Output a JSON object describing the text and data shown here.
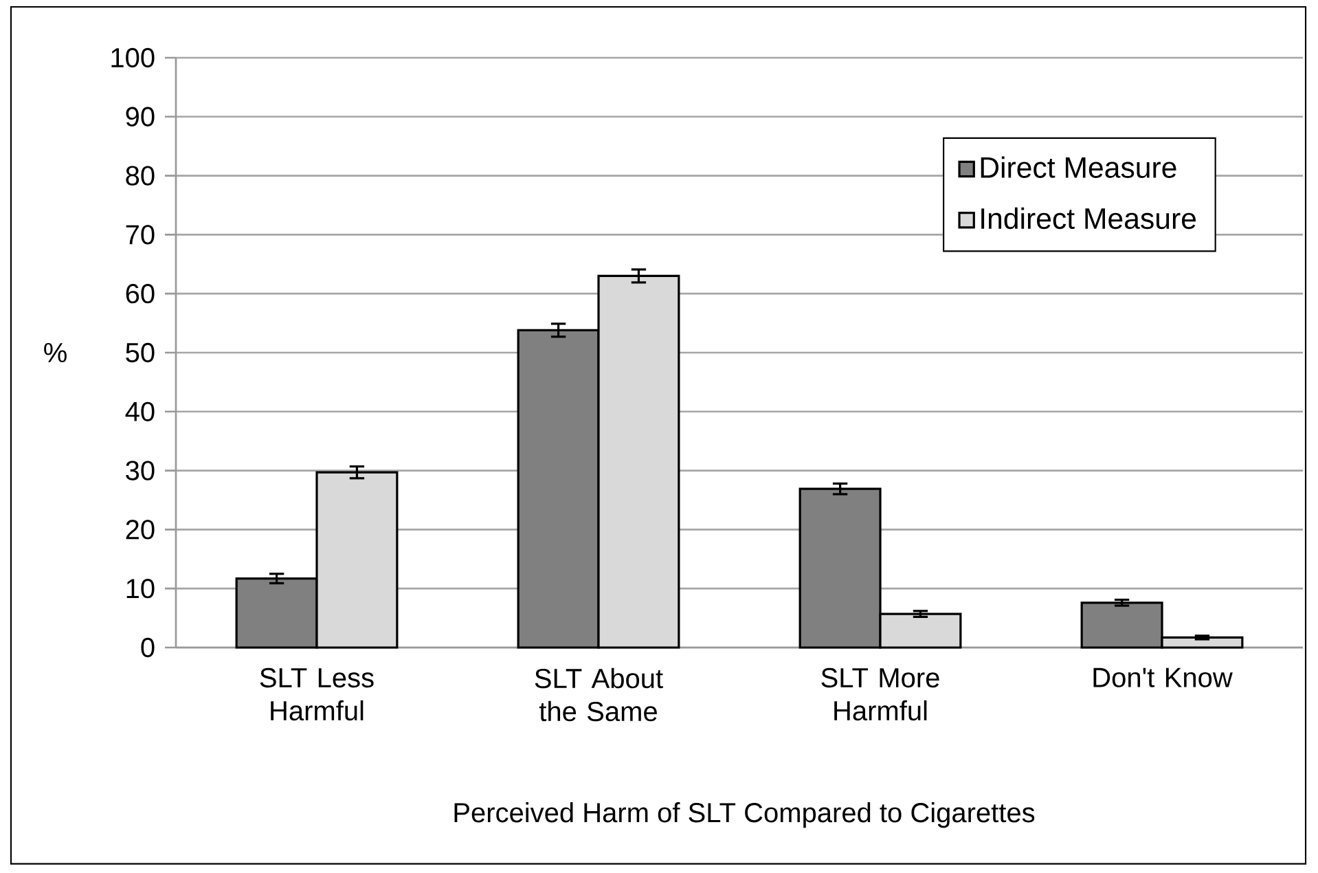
{
  "chart_data": {
    "type": "bar",
    "xlabel": "Perceived Harm of SLT Compared to Cigarettes",
    "ylabel": "%",
    "categories": [
      "SLT Less Harmful",
      "SLT About the Same",
      "SLT More Harmful",
      "Don't Know"
    ],
    "series": [
      {
        "name": "Direct Measure",
        "color": "#808080",
        "values": [
          11.7,
          53.8,
          26.9,
          7.6
        ],
        "errors": [
          0.8,
          1.1,
          0.9,
          0.5
        ]
      },
      {
        "name": "Indirect Measure",
        "color": "#d9d9d9",
        "values": [
          29.7,
          63.0,
          5.7,
          1.7
        ],
        "errors": [
          1.0,
          1.1,
          0.5,
          0.3
        ]
      }
    ],
    "ylim": [
      0,
      100
    ],
    "yticks": [
      0,
      10,
      20,
      30,
      40,
      50,
      60,
      70,
      80,
      90,
      100
    ],
    "grid": "y",
    "legend": "top right"
  }
}
